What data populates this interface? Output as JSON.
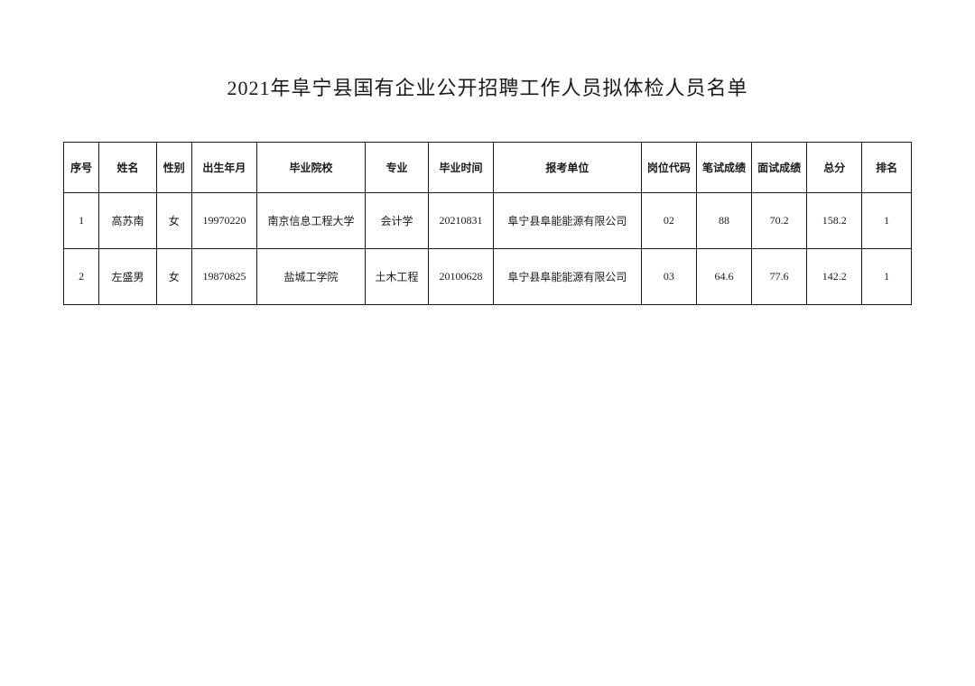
{
  "title": "2021年阜宁县国有企业公开招聘工作人员拟体检人员名单",
  "table": {
    "columns": [
      "序号",
      "姓名",
      "性别",
      "出生年月",
      "毕业院校",
      "专业",
      "毕业时间",
      "报考单位",
      "岗位代码",
      "笔试成绩",
      "面试成绩",
      "总分",
      "排名"
    ],
    "rows": [
      [
        "1",
        "高苏南",
        "女",
        "19970220",
        "南京信息工程大学",
        "会计学",
        "20210831",
        "阜宁县阜能能源有限公司",
        "02",
        "88",
        "70.2",
        "158.2",
        "1"
      ],
      [
        "2",
        "左盛男",
        "女",
        "19870825",
        "盐城工学院",
        "土木工程",
        "20100628",
        "阜宁县阜能能源有限公司",
        "03",
        "64.6",
        "77.6",
        "142.2",
        "1"
      ]
    ],
    "border_color": "#1a1a1a",
    "text_color": "#1a1a1a",
    "background_color": "#ffffff",
    "header_fontsize": 12,
    "cell_fontsize": 12,
    "title_fontsize": 22
  }
}
